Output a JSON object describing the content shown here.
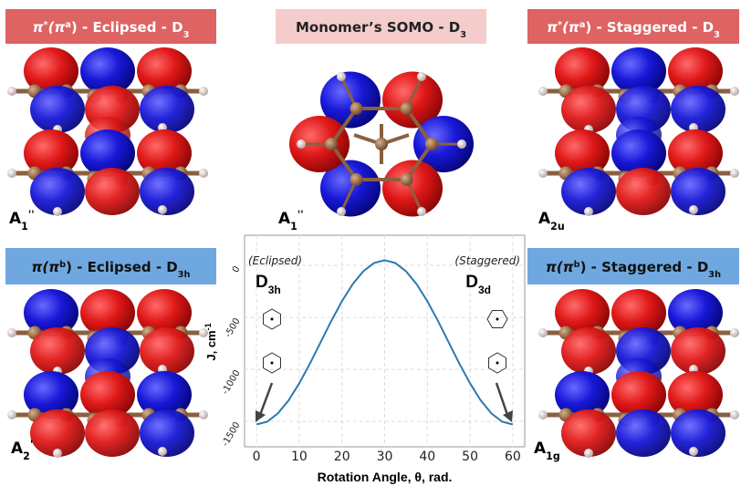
{
  "panels": {
    "top_left": {
      "title": [
        "π",
        "*",
        "(π",
        "a",
        ") - Eclipsed - D",
        "3"
      ],
      "symmetry": [
        "A",
        "1",
        "''"
      ]
    },
    "top_center": {
      "title": [
        "Monomer’s SOMO - D",
        "3"
      ],
      "symmetry": [
        "A",
        "1",
        "''"
      ]
    },
    "top_right": {
      "title": [
        "π",
        "*",
        "(π",
        "a",
        ") - Staggered - D",
        "3"
      ],
      "symmetry": [
        "A",
        "2u"
      ]
    },
    "bottom_left": {
      "title": [
        "π",
        "(π",
        "b",
        ") - Eclipsed - D",
        "3h"
      ],
      "symmetry": [
        "A",
        "2",
        "'"
      ]
    },
    "bottom_right": {
      "title": [
        "π",
        "(π",
        "b",
        ") - Staggered - D",
        "3h"
      ],
      "symmetry": [
        "A",
        "1g"
      ]
    }
  },
  "chart_data": {
    "type": "line",
    "xlabel": "Rotation Angle, θ, rad.",
    "ylabel": [
      "J, cm",
      "-1"
    ],
    "annotations": [
      {
        "text": "(Eclipsed)",
        "symbol": "D",
        "sub": "3h"
      },
      {
        "text": "(Staggered)",
        "symbol": "D",
        "sub": "3d"
      }
    ],
    "x": [
      0,
      2.5,
      5,
      7.5,
      10,
      12.5,
      15,
      17.5,
      20,
      22.5,
      25,
      27.5,
      30,
      32.5,
      35,
      37.5,
      40,
      42.5,
      45,
      47.5,
      50,
      52.5,
      55,
      57.5,
      60
    ],
    "values": [
      -1530,
      -1503,
      -1424,
      -1299,
      -1135,
      -945,
      -740,
      -535,
      -345,
      -181,
      -56,
      23,
      50,
      23,
      -56,
      -181,
      -345,
      -535,
      -740,
      -945,
      -1135,
      -1299,
      -1424,
      -1503,
      -1530
    ],
    "color": "#2a7ab0",
    "xlim": [
      -2.8,
      62.8
    ],
    "ylim": [
      -1745,
      290
    ],
    "xticks": [
      0,
      10,
      20,
      30,
      40,
      50,
      60
    ],
    "yticks": [
      0,
      -500,
      -1000,
      -1500
    ],
    "grid": true
  }
}
